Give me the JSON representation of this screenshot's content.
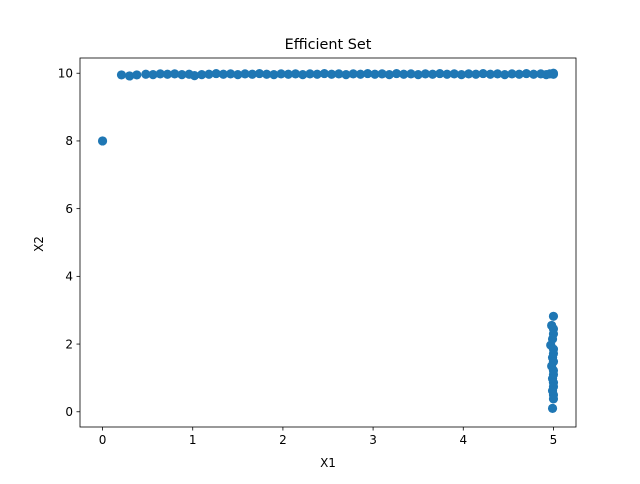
{
  "chart_data": {
    "type": "scatter",
    "title": "Efficient Set",
    "xlabel": "X1",
    "ylabel": "X2",
    "xlim": [
      -0.25,
      5.25
    ],
    "ylim": [
      -0.45,
      10.45
    ],
    "xticks": [
      0,
      1,
      2,
      3,
      4,
      5
    ],
    "yticks": [
      0,
      2,
      4,
      6,
      8,
      10
    ],
    "grid": false,
    "legend": "none",
    "color": "#1f77b4",
    "points": [
      [
        0.0,
        8.0
      ],
      [
        0.21,
        9.95
      ],
      [
        0.3,
        9.92
      ],
      [
        0.38,
        9.95
      ],
      [
        0.48,
        9.97
      ],
      [
        0.56,
        9.96
      ],
      [
        0.64,
        9.98
      ],
      [
        0.72,
        9.97
      ],
      [
        0.8,
        9.98
      ],
      [
        0.88,
        9.96
      ],
      [
        0.96,
        9.97
      ],
      [
        1.02,
        9.93
      ],
      [
        1.1,
        9.96
      ],
      [
        1.18,
        9.97
      ],
      [
        1.26,
        9.99
      ],
      [
        1.34,
        9.97
      ],
      [
        1.42,
        9.98
      ],
      [
        1.5,
        9.96
      ],
      [
        1.58,
        9.98
      ],
      [
        1.66,
        9.97
      ],
      [
        1.74,
        9.99
      ],
      [
        1.82,
        9.97
      ],
      [
        1.9,
        9.96
      ],
      [
        1.98,
        9.98
      ],
      [
        2.06,
        9.97
      ],
      [
        2.14,
        9.98
      ],
      [
        2.22,
        9.96
      ],
      [
        2.3,
        9.98
      ],
      [
        2.38,
        9.97
      ],
      [
        2.46,
        9.99
      ],
      [
        2.54,
        9.97
      ],
      [
        2.62,
        9.98
      ],
      [
        2.7,
        9.96
      ],
      [
        2.78,
        9.98
      ],
      [
        2.86,
        9.97
      ],
      [
        2.94,
        9.99
      ],
      [
        3.02,
        9.97
      ],
      [
        3.1,
        9.98
      ],
      [
        3.18,
        9.96
      ],
      [
        3.26,
        9.99
      ],
      [
        3.34,
        9.97
      ],
      [
        3.42,
        9.98
      ],
      [
        3.5,
        9.96
      ],
      [
        3.58,
        9.98
      ],
      [
        3.66,
        9.97
      ],
      [
        3.74,
        9.99
      ],
      [
        3.82,
        9.97
      ],
      [
        3.9,
        9.98
      ],
      [
        3.98,
        9.96
      ],
      [
        4.06,
        9.98
      ],
      [
        4.14,
        9.97
      ],
      [
        4.22,
        9.99
      ],
      [
        4.3,
        9.97
      ],
      [
        4.38,
        9.98
      ],
      [
        4.46,
        9.96
      ],
      [
        4.54,
        9.98
      ],
      [
        4.62,
        9.97
      ],
      [
        4.7,
        9.99
      ],
      [
        4.78,
        9.97
      ],
      [
        4.86,
        9.98
      ],
      [
        4.92,
        9.96
      ],
      [
        4.96,
        9.98
      ],
      [
        5.0,
        9.97
      ],
      [
        5.0,
        10.0
      ],
      [
        5.0,
        2.82
      ],
      [
        4.98,
        2.55
      ],
      [
        5.0,
        2.45
      ],
      [
        5.0,
        2.3
      ],
      [
        4.99,
        2.15
      ],
      [
        4.97,
        1.97
      ],
      [
        5.0,
        1.85
      ],
      [
        5.0,
        1.72
      ],
      [
        4.99,
        1.6
      ],
      [
        5.0,
        1.48
      ],
      [
        4.98,
        1.35
      ],
      [
        5.0,
        1.22
      ],
      [
        5.0,
        1.1
      ],
      [
        4.99,
        0.98
      ],
      [
        5.0,
        0.86
      ],
      [
        5.0,
        0.74
      ],
      [
        4.99,
        0.62
      ],
      [
        5.0,
        0.5
      ],
      [
        5.0,
        0.38
      ],
      [
        4.99,
        0.1
      ]
    ]
  }
}
